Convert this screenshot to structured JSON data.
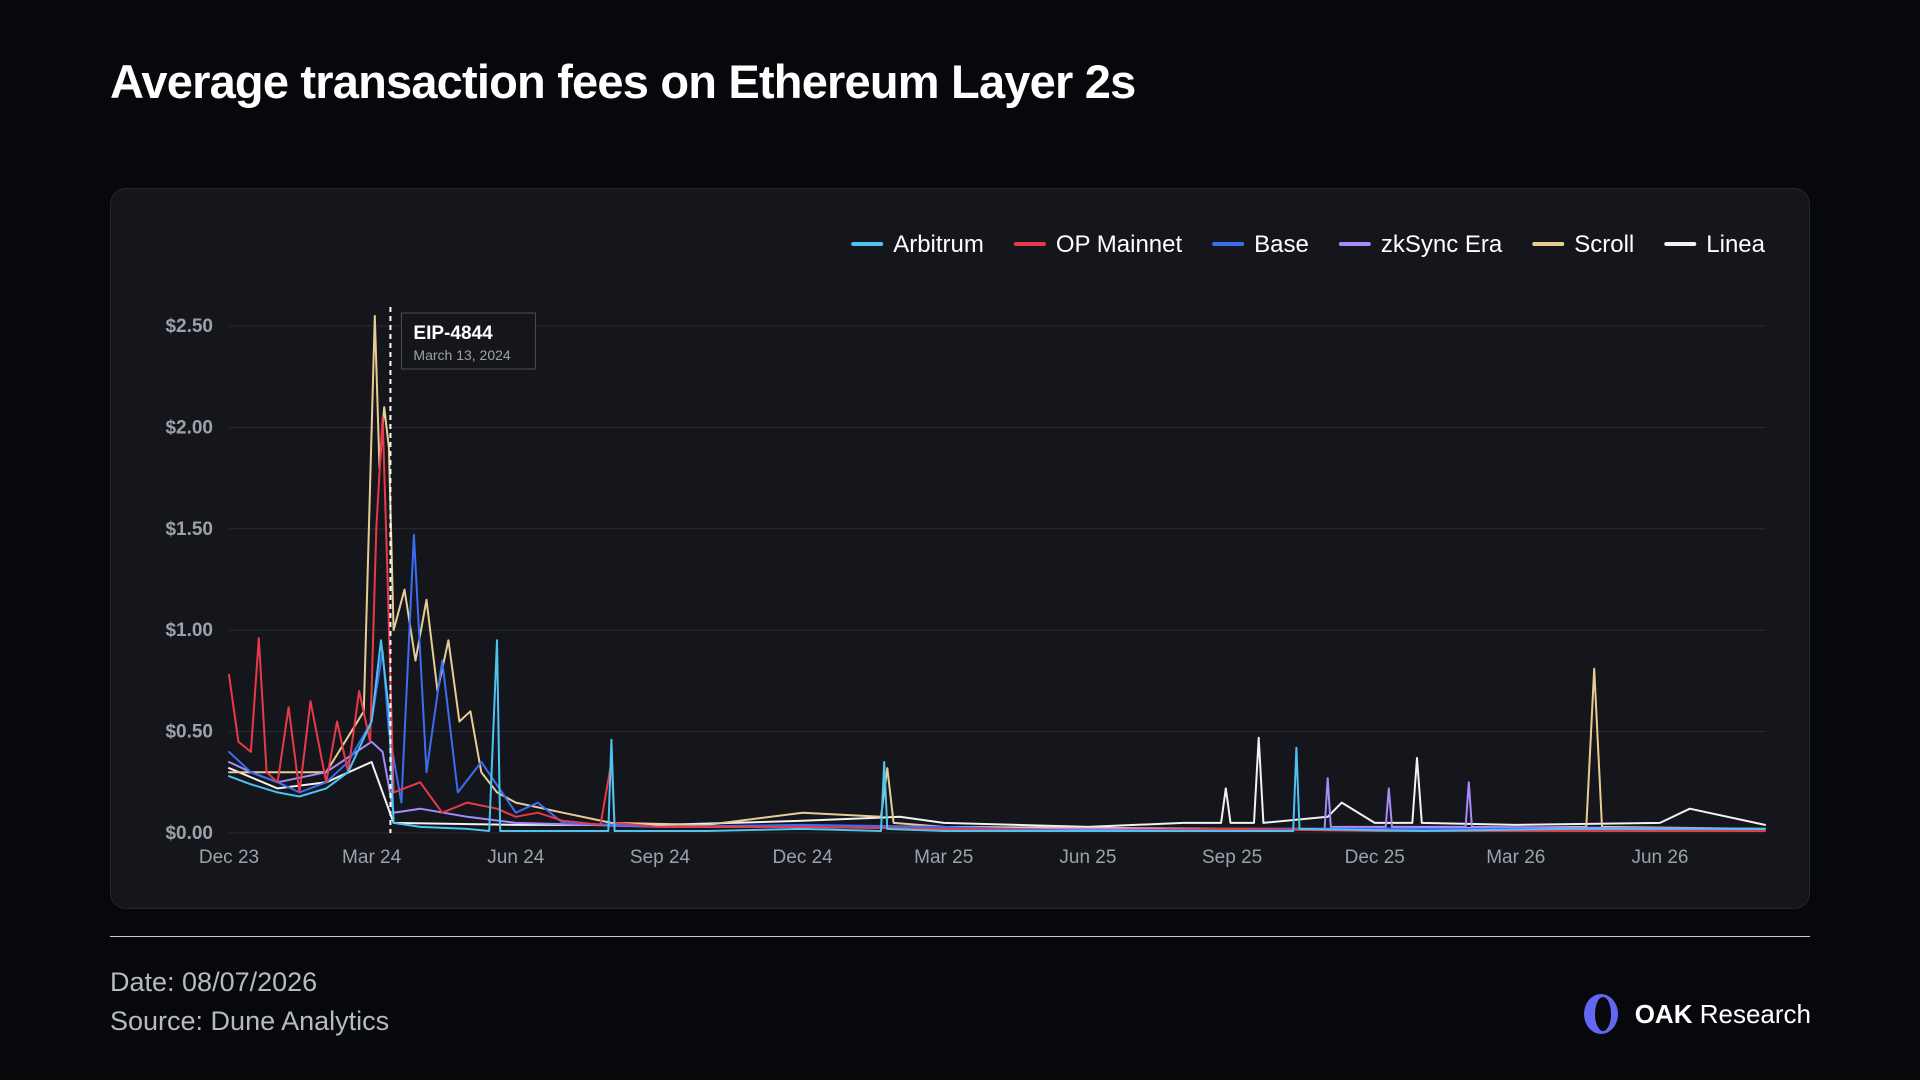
{
  "title": "Average transaction fees on Ethereum Layer 2s",
  "footer": {
    "date": "Date: 08/07/2026",
    "source": "Source: Dune Analytics"
  },
  "brand": {
    "strong": "OAK",
    "light": "Research",
    "logo_icon": "oak-logo-icon",
    "logo_color": "#6366f1"
  },
  "colors": {
    "page_background": "#07080c",
    "card_background": "#15161b",
    "grid": "#2a2c33",
    "tick_text": "#9ea1a9"
  },
  "chart_data": {
    "type": "line",
    "title": "Average transaction fees on Ethereum Layer 2s",
    "xlabel": "",
    "ylabel": "",
    "x_start": "2023-12-01",
    "x_end": "2026-08-07",
    "ylim": [
      0,
      2.5
    ],
    "y_ticks": [
      0,
      0.5,
      1.0,
      1.5,
      2.0,
      2.5
    ],
    "y_tick_labels": [
      "$0.00",
      "$0.50",
      "$1.00",
      "$1.50",
      "$2.00",
      "$2.50"
    ],
    "x_ticks": [
      "2023-12-01",
      "2024-03-01",
      "2024-06-01",
      "2024-09-01",
      "2024-12-01",
      "2025-03-01",
      "2025-06-01",
      "2025-09-01",
      "2025-12-01",
      "2026-03-01",
      "2026-06-01"
    ],
    "x_tick_labels": [
      "Dec 23",
      "Mar 24",
      "Jun 24",
      "Sep 24",
      "Dec 24",
      "Mar 25",
      "Jun 25",
      "Sep 25",
      "Dec 25",
      "Mar 26",
      "Jun 26"
    ],
    "grid": true,
    "legend_position": "top-right",
    "annotation": {
      "date": "2024-03-13",
      "label": "EIP-4844",
      "sublabel": "March 13, 2024"
    },
    "series": [
      {
        "name": "Arbitrum",
        "color": "#4cc3f0",
        "points": [
          [
            "2023-12-01",
            0.28
          ],
          [
            "2023-12-15",
            0.24
          ],
          [
            "2024-01-01",
            0.2
          ],
          [
            "2024-01-15",
            0.18
          ],
          [
            "2024-02-01",
            0.22
          ],
          [
            "2024-02-15",
            0.3
          ],
          [
            "2024-03-01",
            0.55
          ],
          [
            "2024-03-07",
            0.95
          ],
          [
            "2024-03-12",
            0.6
          ],
          [
            "2024-03-15",
            0.05
          ],
          [
            "2024-04-01",
            0.03
          ],
          [
            "2024-05-01",
            0.02
          ],
          [
            "2024-05-15",
            0.01
          ],
          [
            "2024-05-20",
            0.95
          ],
          [
            "2024-05-22",
            0.01
          ],
          [
            "2024-06-15",
            0.01
          ],
          [
            "2024-07-30",
            0.01
          ],
          [
            "2024-08-01",
            0.46
          ],
          [
            "2024-08-03",
            0.01
          ],
          [
            "2024-10-01",
            0.01
          ],
          [
            "2024-12-01",
            0.02
          ],
          [
            "2025-01-20",
            0.01
          ],
          [
            "2025-01-22",
            0.35
          ],
          [
            "2025-01-24",
            0.02
          ],
          [
            "2025-03-01",
            0.01
          ],
          [
            "2025-06-01",
            0.01
          ],
          [
            "2025-08-15",
            0.01
          ],
          [
            "2025-10-10",
            0.01
          ],
          [
            "2025-10-12",
            0.42
          ],
          [
            "2025-10-14",
            0.02
          ],
          [
            "2026-01-01",
            0.01
          ],
          [
            "2026-04-01",
            0.02
          ],
          [
            "2026-08-07",
            0.02
          ]
        ]
      },
      {
        "name": "OP Mainnet",
        "color": "#e8394b",
        "points": [
          [
            "2023-12-01",
            0.78
          ],
          [
            "2023-12-07",
            0.45
          ],
          [
            "2023-12-15",
            0.4
          ],
          [
            "2023-12-20",
            0.96
          ],
          [
            "2023-12-25",
            0.3
          ],
          [
            "2024-01-01",
            0.25
          ],
          [
            "2024-01-08",
            0.62
          ],
          [
            "2024-01-15",
            0.2
          ],
          [
            "2024-01-22",
            0.65
          ],
          [
            "2024-02-01",
            0.25
          ],
          [
            "2024-02-08",
            0.55
          ],
          [
            "2024-02-15",
            0.3
          ],
          [
            "2024-02-22",
            0.7
          ],
          [
            "2024-02-29",
            0.45
          ],
          [
            "2024-03-04",
            1.5
          ],
          [
            "2024-03-08",
            2.05
          ],
          [
            "2024-03-11",
            1.3
          ],
          [
            "2024-03-15",
            0.2
          ],
          [
            "2024-04-01",
            0.25
          ],
          [
            "2024-04-15",
            0.1
          ],
          [
            "2024-05-01",
            0.15
          ],
          [
            "2024-05-20",
            0.12
          ],
          [
            "2024-06-01",
            0.08
          ],
          [
            "2024-06-15",
            0.1
          ],
          [
            "2024-07-01",
            0.06
          ],
          [
            "2024-07-25",
            0.04
          ],
          [
            "2024-08-01",
            0.35
          ],
          [
            "2024-08-03",
            0.05
          ],
          [
            "2024-09-01",
            0.03
          ],
          [
            "2024-12-01",
            0.03
          ],
          [
            "2025-03-01",
            0.02
          ],
          [
            "2025-06-01",
            0.01
          ],
          [
            "2025-09-01",
            0.02
          ],
          [
            "2025-12-01",
            0.01
          ],
          [
            "2026-03-01",
            0.01
          ],
          [
            "2026-08-07",
            0.01
          ]
        ]
      },
      {
        "name": "Base",
        "color": "#3b6cf2",
        "points": [
          [
            "2023-12-01",
            0.4
          ],
          [
            "2023-12-15",
            0.3
          ],
          [
            "2024-01-01",
            0.25
          ],
          [
            "2024-01-15",
            0.2
          ],
          [
            "2024-02-01",
            0.25
          ],
          [
            "2024-02-15",
            0.35
          ],
          [
            "2024-03-01",
            0.55
          ],
          [
            "2024-03-08",
            0.9
          ],
          [
            "2024-03-12",
            0.5
          ],
          [
            "2024-03-20",
            0.15
          ],
          [
            "2024-03-28",
            1.47
          ],
          [
            "2024-04-05",
            0.3
          ],
          [
            "2024-04-15",
            0.85
          ],
          [
            "2024-04-25",
            0.2
          ],
          [
            "2024-05-10",
            0.35
          ],
          [
            "2024-06-01",
            0.1
          ],
          [
            "2024-06-15",
            0.15
          ],
          [
            "2024-07-01",
            0.05
          ],
          [
            "2024-09-01",
            0.03
          ],
          [
            "2024-12-01",
            0.04
          ],
          [
            "2025-03-01",
            0.03
          ],
          [
            "2025-06-01",
            0.01
          ],
          [
            "2025-09-01",
            0.02
          ],
          [
            "2025-12-01",
            0.02
          ],
          [
            "2026-03-01",
            0.02
          ],
          [
            "2026-08-07",
            0.02
          ]
        ]
      },
      {
        "name": "zkSync Era",
        "color": "#a78bfa",
        "points": [
          [
            "2023-12-01",
            0.35
          ],
          [
            "2023-12-15",
            0.3
          ],
          [
            "2024-01-01",
            0.25
          ],
          [
            "2024-02-01",
            0.3
          ],
          [
            "2024-03-01",
            0.45
          ],
          [
            "2024-03-08",
            0.4
          ],
          [
            "2024-03-15",
            0.1
          ],
          [
            "2024-04-01",
            0.12
          ],
          [
            "2024-05-01",
            0.08
          ],
          [
            "2024-06-01",
            0.05
          ],
          [
            "2024-09-01",
            0.03
          ],
          [
            "2024-12-01",
            0.03
          ],
          [
            "2025-03-01",
            0.02
          ],
          [
            "2025-06-01",
            0.02
          ],
          [
            "2025-09-01",
            0.02
          ],
          [
            "2025-10-30",
            0.02
          ],
          [
            "2025-11-01",
            0.27
          ],
          [
            "2025-11-03",
            0.03
          ],
          [
            "2025-12-08",
            0.03
          ],
          [
            "2025-12-10",
            0.22
          ],
          [
            "2025-12-12",
            0.03
          ],
          [
            "2026-01-28",
            0.03
          ],
          [
            "2026-01-30",
            0.25
          ],
          [
            "2026-02-01",
            0.03
          ],
          [
            "2026-08-07",
            0.02
          ]
        ]
      },
      {
        "name": "Scroll",
        "color": "#e8cc96",
        "points": [
          [
            "2023-12-01",
            0.3
          ],
          [
            "2024-01-01",
            0.3
          ],
          [
            "2024-02-01",
            0.3
          ],
          [
            "2024-02-25",
            0.6
          ],
          [
            "2024-03-03",
            2.55
          ],
          [
            "2024-03-06",
            1.8
          ],
          [
            "2024-03-09",
            2.1
          ],
          [
            "2024-03-12",
            1.9
          ],
          [
            "2024-03-15",
            1.0
          ],
          [
            "2024-03-22",
            1.2
          ],
          [
            "2024-03-29",
            0.85
          ],
          [
            "2024-04-05",
            1.15
          ],
          [
            "2024-04-12",
            0.7
          ],
          [
            "2024-04-19",
            0.95
          ],
          [
            "2024-04-26",
            0.55
          ],
          [
            "2024-05-03",
            0.6
          ],
          [
            "2024-05-10",
            0.3
          ],
          [
            "2024-05-20",
            0.2
          ],
          [
            "2024-06-01",
            0.15
          ],
          [
            "2024-07-01",
            0.1
          ],
          [
            "2024-08-01",
            0.05
          ],
          [
            "2024-10-01",
            0.04
          ],
          [
            "2024-12-01",
            0.1
          ],
          [
            "2025-01-20",
            0.08
          ],
          [
            "2025-01-24",
            0.32
          ],
          [
            "2025-01-28",
            0.05
          ],
          [
            "2025-03-01",
            0.03
          ],
          [
            "2025-09-01",
            0.02
          ],
          [
            "2025-12-01",
            0.02
          ],
          [
            "2026-04-15",
            0.03
          ],
          [
            "2026-04-20",
            0.81
          ],
          [
            "2026-04-25",
            0.03
          ],
          [
            "2026-08-07",
            0.02
          ]
        ]
      },
      {
        "name": "Linea",
        "color": "#f2f2f2",
        "points": [
          [
            "2023-12-01",
            0.32
          ],
          [
            "2024-01-01",
            0.22
          ],
          [
            "2024-02-01",
            0.25
          ],
          [
            "2024-03-01",
            0.35
          ],
          [
            "2024-03-15",
            0.05
          ],
          [
            "2024-06-01",
            0.04
          ],
          [
            "2024-09-01",
            0.04
          ],
          [
            "2024-12-01",
            0.06
          ],
          [
            "2025-02-01",
            0.08
          ],
          [
            "2025-03-01",
            0.05
          ],
          [
            "2025-06-01",
            0.03
          ],
          [
            "2025-08-01",
            0.05
          ],
          [
            "2025-08-25",
            0.05
          ],
          [
            "2025-08-28",
            0.22
          ],
          [
            "2025-08-31",
            0.05
          ],
          [
            "2025-09-15",
            0.05
          ],
          [
            "2025-09-18",
            0.47
          ],
          [
            "2025-09-21",
            0.05
          ],
          [
            "2025-11-01",
            0.08
          ],
          [
            "2025-11-10",
            0.15
          ],
          [
            "2025-12-01",
            0.05
          ],
          [
            "2025-12-25",
            0.05
          ],
          [
            "2025-12-28",
            0.37
          ],
          [
            "2025-12-31",
            0.05
          ],
          [
            "2026-03-01",
            0.04
          ],
          [
            "2026-06-01",
            0.05
          ],
          [
            "2026-06-20",
            0.12
          ],
          [
            "2026-08-07",
            0.04
          ]
        ]
      }
    ]
  }
}
